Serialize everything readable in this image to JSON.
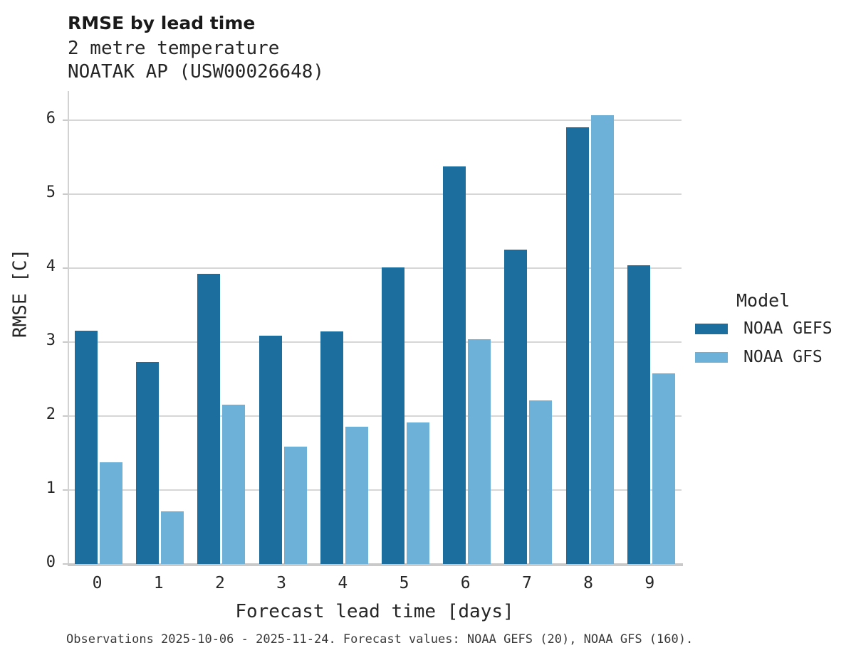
{
  "header": {
    "title": "RMSE by lead time",
    "subtitle_line1": "2 metre temperature",
    "subtitle_line2": "NOATAK AP (USW00026648)"
  },
  "axes": {
    "xlabel": "Forecast lead time [days]",
    "ylabel": "RMSE [C]"
  },
  "legend": {
    "title": "Model",
    "entries": [
      {
        "label": "NOAA GEFS",
        "color": "#1b6e9e"
      },
      {
        "label": "NOAA GFS",
        "color": "#6db1d8"
      }
    ]
  },
  "caption": "Observations 2025-10-06 - 2025-11-24. Forecast values: NOAA GEFS (20), NOAA GFS (160).",
  "colors": {
    "gefs_bar": "#1b6e9e",
    "gfs_bar": "#6db1d8",
    "gridline": "#d6d6d6",
    "axis_spine": "#c9c9c9",
    "text": "#262626"
  },
  "chart_data": {
    "type": "bar",
    "title": "RMSE by lead time",
    "subtitle": [
      "2 metre temperature",
      "NOATAK AP (USW00026648)"
    ],
    "xlabel": "Forecast lead time [days]",
    "ylabel": "RMSE [C]",
    "categories": [
      "0",
      "1",
      "2",
      "3",
      "4",
      "5",
      "6",
      "7",
      "8",
      "9"
    ],
    "series": [
      {
        "name": "NOAA GEFS",
        "color": "#1b6e9e",
        "values": [
          3.15,
          2.73,
          3.92,
          3.08,
          3.14,
          4.01,
          5.37,
          4.25,
          5.9,
          4.04
        ]
      },
      {
        "name": "NOAA GFS",
        "color": "#6db1d8",
        "values": [
          1.37,
          0.71,
          2.15,
          1.59,
          1.85,
          1.91,
          3.04,
          2.21,
          6.06,
          2.58
        ]
      }
    ],
    "ylim": [
      0,
      6.39
    ],
    "yticks": [
      0,
      1,
      2,
      3,
      4,
      5,
      6
    ],
    "grid": true,
    "legend_position": "right"
  }
}
